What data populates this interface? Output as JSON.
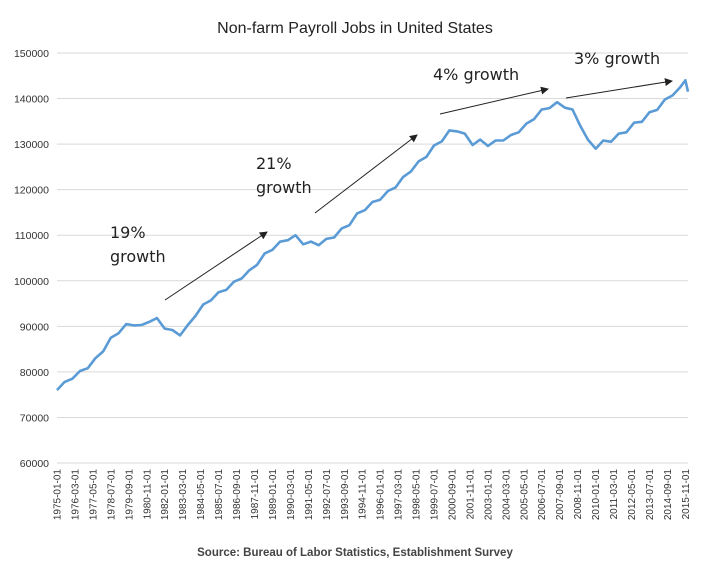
{
  "chart_data": {
    "type": "line",
    "title": "Non-farm Payroll Jobs in United States",
    "source": "Source: Bureau of Labor Statistics, Establishment Survey",
    "xlabel": "",
    "ylabel": "",
    "ylim": [
      60000,
      150000
    ],
    "yticks": [
      "60000",
      "70000",
      "80000",
      "90000",
      "100000",
      "110000",
      "120000",
      "130000",
      "140000",
      "150000"
    ],
    "xticks": [
      "1975-01-01",
      "1976-03-01",
      "1977-05-01",
      "1978-07-01",
      "1979-09-01",
      "1980-11-01",
      "1982-01-01",
      "1983-03-01",
      "1984-05-01",
      "1985-07-01",
      "1986-09-01",
      "1987-11-01",
      "1989-01-01",
      "1990-03-01",
      "1991-05-01",
      "1992-07-01",
      "1993-09-01",
      "1994-11-01",
      "1996-01-01",
      "1997-03-01",
      "1998-05-01",
      "1999-07-01",
      "2000-09-01",
      "2001-11-01",
      "2003-01-01",
      "2004-03-01",
      "2005-05-01",
      "2006-07-01",
      "2007-09-01",
      "2008-11-01",
      "2010-01-01",
      "2011-03-01",
      "2012-05-01",
      "2013-07-01",
      "2014-09-01",
      "2015-11-01"
    ],
    "grid": true,
    "legend": "none",
    "series_color": "#5b9bd5",
    "series": [
      {
        "x": [
          "1975-01-01",
          "1975-07-01",
          "1976-01-01",
          "1976-07-01",
          "1977-01-01",
          "1977-07-01",
          "1978-01-01",
          "1978-07-01",
          "1979-01-01",
          "1979-07-01",
          "1980-01-01",
          "1980-07-01",
          "1981-01-01",
          "1981-07-01",
          "1982-01-01",
          "1982-07-01",
          "1983-01-01",
          "1983-07-01",
          "1984-01-01",
          "1984-07-01",
          "1985-01-01",
          "1985-07-01",
          "1986-01-01",
          "1986-07-01",
          "1987-01-01",
          "1987-07-01",
          "1988-01-01",
          "1988-07-01",
          "1989-01-01",
          "1989-07-01",
          "1990-01-01",
          "1990-07-01",
          "1991-01-01",
          "1991-07-01",
          "1992-01-01",
          "1992-07-01",
          "1993-01-01",
          "1993-07-01",
          "1994-01-01",
          "1994-07-01",
          "1995-01-01",
          "1995-07-01",
          "1996-01-01",
          "1996-07-01",
          "1997-01-01",
          "1997-07-01",
          "1998-01-01",
          "1998-07-01",
          "1999-01-01",
          "1999-07-01",
          "2000-01-01",
          "2000-07-01",
          "2001-01-01",
          "2001-07-01",
          "2002-01-01",
          "2002-07-01",
          "2003-01-01",
          "2003-07-01",
          "2004-01-01",
          "2004-07-01",
          "2005-01-01",
          "2005-07-01",
          "2006-01-01",
          "2006-07-01",
          "2007-01-01",
          "2007-07-01",
          "2008-01-01",
          "2008-07-01",
          "2009-01-01",
          "2009-07-01",
          "2010-01-01",
          "2010-07-01",
          "2011-01-01",
          "2011-07-01",
          "2012-01-01",
          "2012-07-01",
          "2013-01-01",
          "2013-07-01",
          "2014-01-01",
          "2014-07-01",
          "2015-01-01",
          "2015-07-01",
          "2015-11-01",
          "2016-01-01"
        ],
        "values": [
          76000,
          77800,
          78500,
          80200,
          80800,
          83000,
          84500,
          87500,
          88500,
          90500,
          90200,
          90300,
          91000,
          91800,
          89500,
          89200,
          88000,
          90300,
          92300,
          94800,
          95700,
          97500,
          98000,
          99800,
          100500,
          102300,
          103500,
          106000,
          106800,
          108600,
          108900,
          110000,
          108000,
          108600,
          107800,
          109200,
          109500,
          111500,
          112200,
          114800,
          115500,
          117300,
          117800,
          119700,
          120500,
          122800,
          124000,
          126200,
          127200,
          129700,
          130600,
          133000,
          132800,
          132300,
          129800,
          131000,
          129600,
          130800,
          130800,
          132000,
          132600,
          134500,
          135500,
          137600,
          137900,
          139200,
          138000,
          137600,
          134000,
          131000,
          129000,
          130800,
          130500,
          132300,
          132600,
          134700,
          134900,
          137000,
          137500,
          139800,
          140700,
          142500,
          144000,
          141500
        ]
      }
    ],
    "annotations": [
      {
        "lines": [
          "19%",
          "growth"
        ]
      },
      {
        "lines": [
          "21%",
          "growth"
        ]
      },
      {
        "lines": [
          "4% growth"
        ]
      },
      {
        "lines": [
          "3% growth"
        ]
      }
    ]
  }
}
